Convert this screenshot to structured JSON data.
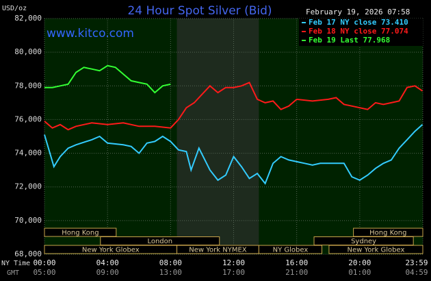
{
  "chart_data": {
    "type": "line",
    "title": "24 Hour Spot Silver (Bid)",
    "timestamp": "February 19, 2026 07:58",
    "website": "www.kitco.com",
    "ylabel": "USD/oz",
    "x_row_labels": [
      "NY Time",
      "GMT"
    ],
    "xlim": [
      0,
      24
    ],
    "ylim": [
      68000,
      82000
    ],
    "xticks": [
      {
        "value": 0,
        "label": "00:00"
      },
      {
        "value": 4,
        "label": "04:00"
      },
      {
        "value": 8,
        "label": "08:00"
      },
      {
        "value": 12,
        "label": "12:00"
      },
      {
        "value": 16,
        "label": "16:00"
      },
      {
        "value": 20,
        "label": "20:00"
      },
      {
        "value": 24,
        "label": "23:59"
      }
    ],
    "gmt_tick_labels": [
      "05:00",
      "09:00",
      "13:00",
      "17:00",
      "21:00",
      "01:00",
      "04:59"
    ],
    "yticks": [
      {
        "value": 68000,
        "label": "68,000"
      },
      {
        "value": 70000,
        "label": "70,000"
      },
      {
        "value": 72000,
        "label": "72,000"
      },
      {
        "value": 74000,
        "label": "74,000"
      },
      {
        "value": 76000,
        "label": "76,000"
      },
      {
        "value": 78000,
        "label": "78,000"
      },
      {
        "value": 80000,
        "label": "80,000"
      },
      {
        "value": 82000,
        "label": "82,000"
      }
    ],
    "grid": true,
    "highlight": [
      8.4,
      13.6
    ],
    "series": [
      {
        "name": "Feb 17 NY close 73.410",
        "color": "#33ccff",
        "x": [
          0,
          0.6,
          1,
          1.5,
          2,
          3,
          3.5,
          4,
          5,
          5.5,
          6,
          6.5,
          7,
          7.5,
          8,
          8.5,
          9,
          9.3,
          9.8,
          10.5,
          11,
          11.5,
          12,
          12.5,
          13,
          13.5,
          14,
          14.5,
          15,
          15.5,
          16,
          16.5,
          17,
          17.5,
          18,
          18.5,
          19,
          19.5,
          20,
          20.5,
          21,
          21.5,
          22,
          22.5,
          23,
          23.5,
          23.98
        ],
        "values": [
          75100,
          73200,
          73800,
          74300,
          74500,
          74800,
          75000,
          74600,
          74500,
          74400,
          74000,
          74600,
          74700,
          75000,
          74700,
          74200,
          74100,
          73000,
          74300,
          73000,
          72400,
          72700,
          73800,
          73200,
          72500,
          72800,
          72200,
          73400,
          73800,
          73600,
          73500,
          73400,
          73300,
          73400,
          73400,
          73400,
          73400,
          72600,
          72400,
          72700,
          73100,
          73400,
          73600,
          74300,
          74800,
          75300,
          75700
        ]
      },
      {
        "name": "Feb 18 NY close 77.074",
        "color": "#ff1a1a",
        "x": [
          0,
          0.5,
          1,
          1.5,
          2,
          3,
          4,
          5,
          6,
          7,
          8,
          8.5,
          9,
          9.5,
          10,
          10.5,
          11,
          11.5,
          12,
          12.5,
          13,
          13.5,
          14,
          14.5,
          15,
          15.5,
          16,
          17,
          18,
          18.5,
          19,
          20,
          20.5,
          21,
          21.5,
          22,
          22.5,
          23,
          23.5,
          23.98
        ],
        "values": [
          75900,
          75500,
          75700,
          75400,
          75600,
          75800,
          75700,
          75800,
          75600,
          75600,
          75500,
          76000,
          76700,
          77000,
          77500,
          78000,
          77600,
          77900,
          77900,
          78000,
          78200,
          77200,
          77000,
          77100,
          76600,
          76800,
          77200,
          77100,
          77200,
          77300,
          76900,
          76700,
          76600,
          77000,
          76900,
          77000,
          77100,
          77900,
          78000,
          77700
        ]
      },
      {
        "name": "Feb 19 Last 77.968",
        "color": "#33ff33",
        "x": [
          0,
          0.5,
          1,
          1.5,
          2,
          2.5,
          3,
          3.5,
          4,
          4.5,
          5,
          5.5,
          6,
          6.5,
          7,
          7.5,
          8
        ],
        "values": [
          77900,
          77900,
          78000,
          78100,
          78800,
          79100,
          79000,
          78900,
          79200,
          79100,
          78700,
          78300,
          78200,
          78100,
          77600,
          78000,
          78100
        ]
      }
    ],
    "session_rows": [
      [
        {
          "label": "Hong Kong",
          "start": 0,
          "end": 4.55
        },
        {
          "label": "Hong Kong",
          "start": 19.6,
          "end": 24
        }
      ],
      [
        {
          "label": "London",
          "start": 3.55,
          "end": 11.1
        },
        {
          "label": "Sydney",
          "start": 17.1,
          "end": 23.4
        }
      ],
      [
        {
          "label": "New York Globex",
          "start": 0,
          "end": 8.4
        },
        {
          "label": "New York NYMEX",
          "start": 8.4,
          "end": 13.6
        },
        {
          "label": "NY Globex",
          "start": 13.6,
          "end": 17.6
        },
        {
          "label": "New York Globex",
          "start": 18.05,
          "end": 24
        }
      ]
    ]
  }
}
